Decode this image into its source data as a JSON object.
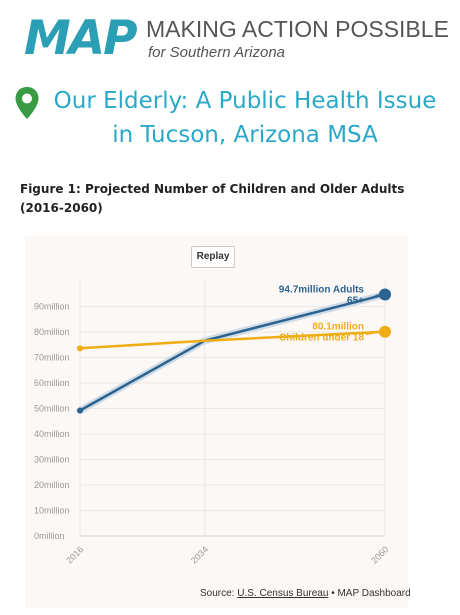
{
  "header": {
    "logo_text": "MAP",
    "tagline_main": "MAKING ACTION POSSIBLE",
    "tagline_sub": "for Southern Arizona"
  },
  "article": {
    "title": "Our Elderly: A Public Health Issue in Tucson, Arizona MSA"
  },
  "figure": {
    "caption": "Figure 1: Projected Number of Children and Older Adults (2016-2060)",
    "replay_label": "Replay",
    "source_prefix": "Source: ",
    "source_link": "U.S. Census Bureau",
    "source_suffix": " • MAP Dashboard"
  },
  "colors": {
    "adults": "#2b6390",
    "children": "#efad14",
    "brand_teal": "#2aa8c9",
    "brand_green": "#3a9b47"
  },
  "chart_data": {
    "type": "line",
    "x": [
      2016,
      2034,
      2060
    ],
    "xticks": [
      "2016",
      "2034",
      "2060"
    ],
    "ylim": [
      0,
      100
    ],
    "yticks": [
      "0million",
      "10million",
      "20million",
      "30million",
      "40million",
      "50million",
      "60million",
      "70million",
      "80million",
      "90million"
    ],
    "grid": true,
    "series": [
      {
        "name": "Adults 65+",
        "values": [
          49.2,
          76.6,
          94.7
        ],
        "end_value_label": "94.7million",
        "end_label_lines": [
          "Adults",
          "65+"
        ]
      },
      {
        "name": "Children under 18",
        "values": [
          73.6,
          76.6,
          80.1
        ],
        "end_value_label": "80.1million",
        "end_label_lines": [
          "Children under 18"
        ]
      }
    ]
  }
}
